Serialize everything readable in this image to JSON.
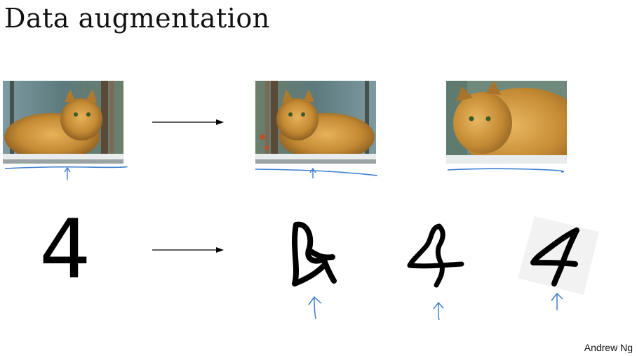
{
  "slide": {
    "title": "Data augmentation",
    "author": "Andrew Ng",
    "digit": "4"
  },
  "colors": {
    "annotation": "#3f7fd0",
    "fur": "#c48a33",
    "background": "#ffffff"
  },
  "icons": [
    "right-arrow-icon",
    "up-arrow-annotation-icon"
  ]
}
